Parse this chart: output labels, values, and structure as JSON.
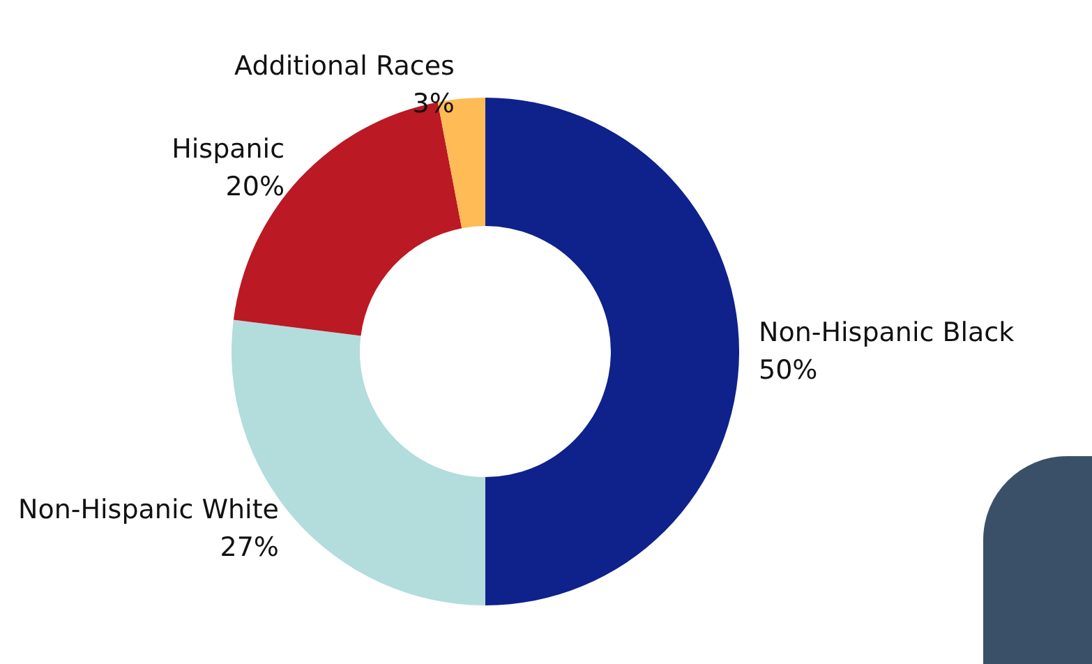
{
  "chart_data": {
    "type": "donut",
    "categories": [
      "Non-Hispanic Black",
      "Non-Hispanic White",
      "Hispanic",
      "Additional Races"
    ],
    "values": [
      50,
      27,
      20,
      3
    ],
    "value_labels": [
      "50%",
      "27%",
      "20%",
      "3%"
    ],
    "colors": [
      "#0f218b",
      "#b3dcdc",
      "#bb1924",
      "#ffbb55"
    ],
    "legend": false
  }
}
